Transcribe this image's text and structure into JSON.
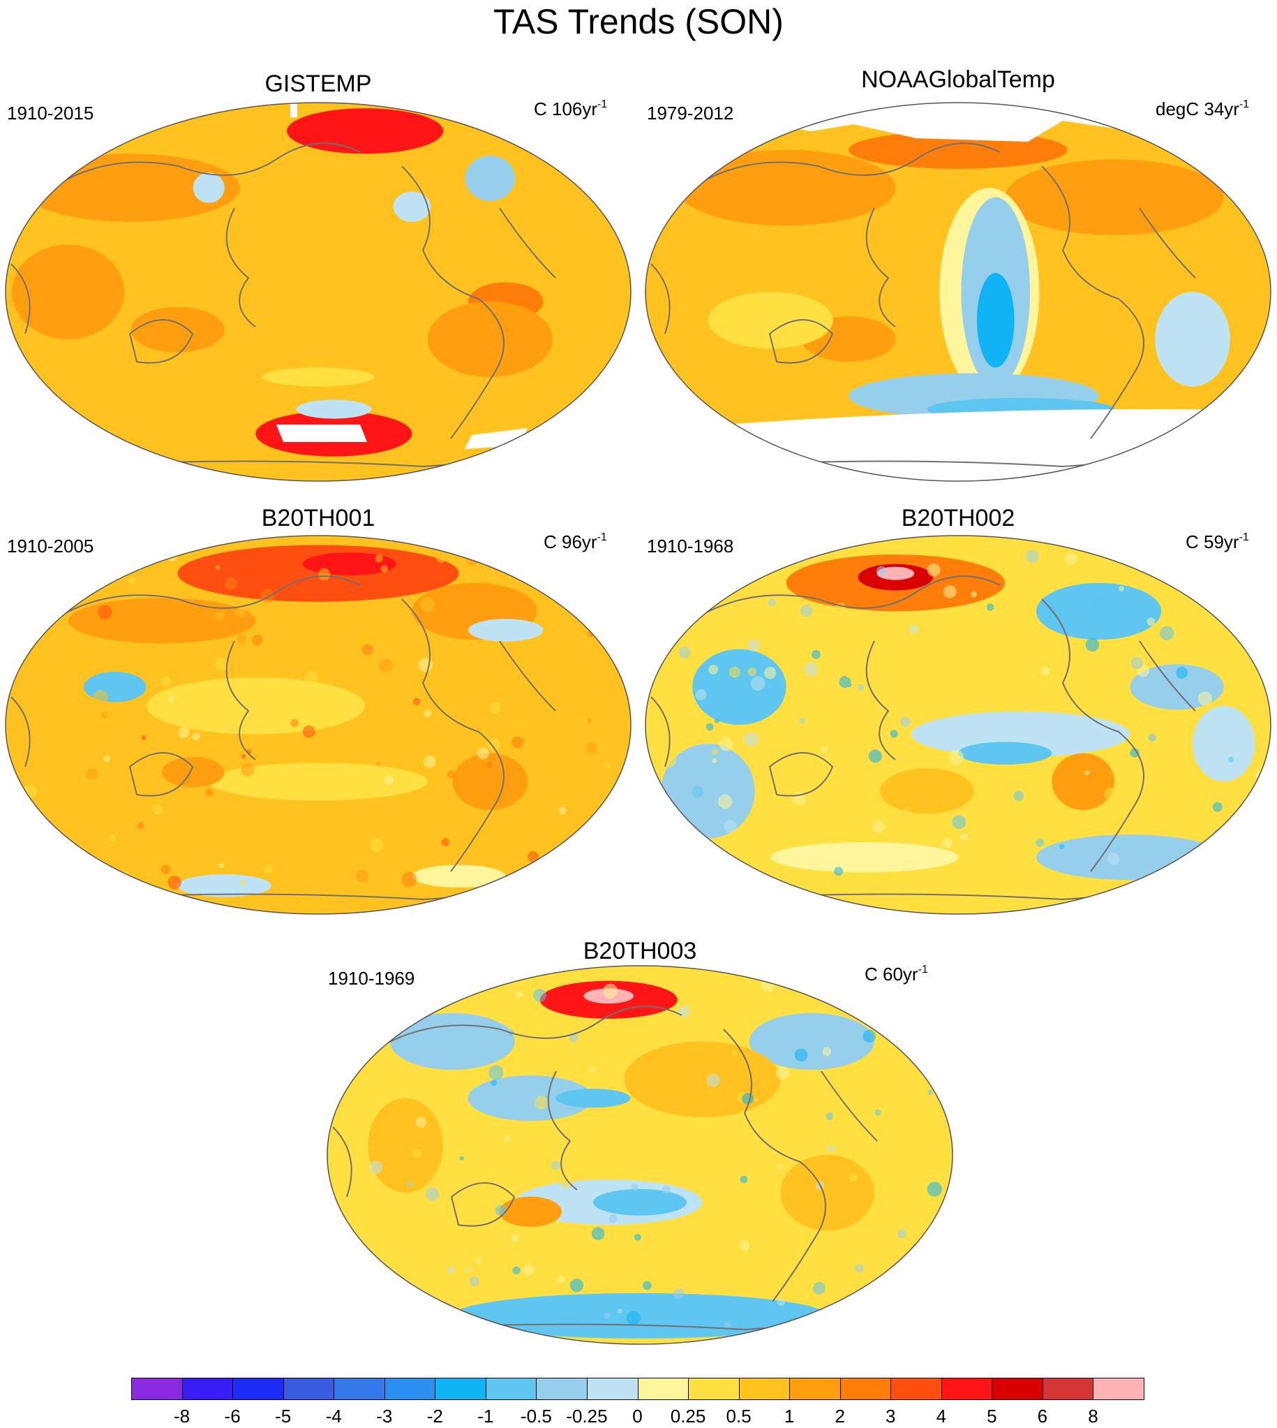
{
  "title": "TAS Trends (SON)",
  "panels": [
    {
      "title": "GISTEMP",
      "period": "1910-2015",
      "units": "C 106yr",
      "exponent": "-1",
      "style": "warm",
      "missing_north": true,
      "missing_south": true
    },
    {
      "title": "NOAAGlobalTemp",
      "period": "1979-2012",
      "units": "degC 34yr",
      "exponent": "-1",
      "style": "noaa",
      "missing_north": true,
      "missing_south": true
    },
    {
      "title": "B20TH001",
      "period": "1910-2005",
      "units": "C 96yr",
      "exponent": "-1",
      "style": "warm2",
      "missing_north": false,
      "missing_south": false
    },
    {
      "title": "B20TH002",
      "period": "1910-1968",
      "units": "C 59yr",
      "exponent": "-1",
      "style": "cool",
      "missing_north": false,
      "missing_south": false
    },
    {
      "title": "B20TH003",
      "period": "1910-1969",
      "units": "C 60yr",
      "exponent": "-1",
      "style": "mixed",
      "missing_north": false,
      "missing_south": false
    }
  ],
  "colorbar": {
    "labels": [
      "-8",
      "-6",
      "-5",
      "-4",
      "-3",
      "-2",
      "-1",
      "-0.5",
      "-0.25",
      "0",
      "0.25",
      "0.5",
      "1",
      "2",
      "3",
      "4",
      "5",
      "6",
      "8"
    ],
    "colors": [
      "#8a2be2",
      "#3a1cf5",
      "#1e2df5",
      "#3a5ce0",
      "#3479e8",
      "#2a8ff0",
      "#10b4f5",
      "#5ec6f0",
      "#96cfec",
      "#bde3f5",
      "#fff59a",
      "#ffe040",
      "#ffc21e",
      "#ff9f10",
      "#ff7e0a",
      "#ff4f10",
      "#ff1515",
      "#d90000",
      "#d63535",
      "#ffb3b5"
    ]
  }
}
